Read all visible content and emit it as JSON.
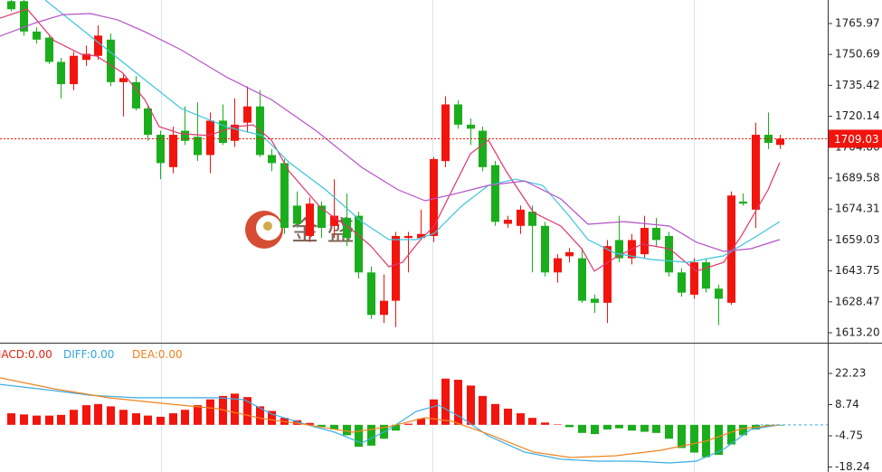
{
  "chart_data": [
    {
      "type": "candlestick",
      "up_color": "#f2150e",
      "down_color": "#1aae1c",
      "open": [
        1777,
        1777,
        1762,
        1759,
        1747,
        1736,
        1748,
        1750,
        1758,
        1737,
        1737,
        1724,
        1711,
        1695,
        1713,
        1710,
        1701,
        1718,
        1708,
        1717,
        1725,
        1701,
        1697,
        1676,
        1661,
        1676,
        1666,
        1670,
        1671,
        1643,
        1622,
        1629,
        1660,
        1660,
        1661,
        1698,
        1726,
        1716,
        1713,
        1696,
        1667,
        1666,
        1673,
        1666,
        1643,
        1651,
        1650,
        1630,
        1628,
        1659,
        1650,
        1652,
        1665,
        1661,
        1643,
        1632,
        1648,
        1635,
        1628,
        1678,
        1674,
        1711,
        1706
      ],
      "high": [
        1778,
        1778,
        1764,
        1760,
        1749,
        1752,
        1755,
        1765,
        1761,
        1741,
        1740,
        1726,
        1713,
        1715,
        1725,
        1727,
        1722,
        1726,
        1729,
        1735,
        1733,
        1704,
        1699,
        1683,
        1680,
        1678,
        1689,
        1682,
        1673,
        1646,
        1642,
        1663,
        1663,
        1674,
        1700,
        1730,
        1728,
        1719,
        1715,
        1698,
        1671,
        1676,
        1676,
        1668,
        1652,
        1655,
        1655,
        1632,
        1659,
        1671,
        1662,
        1671,
        1670,
        1663,
        1645,
        1650,
        1650,
        1637,
        1683,
        1682,
        1717,
        1722,
        1711
      ],
      "low": [
        1772,
        1760,
        1756,
        1746,
        1729,
        1733,
        1745,
        1748,
        1735,
        1720,
        1723,
        1708,
        1689,
        1692,
        1706,
        1698,
        1692,
        1706,
        1705,
        1712,
        1700,
        1693,
        1662,
        1665,
        1658,
        1660,
        1660,
        1656,
        1640,
        1620,
        1618,
        1616,
        1643,
        1659,
        1658,
        1695,
        1714,
        1706,
        1693,
        1666,
        1665,
        1662,
        1643,
        1641,
        1638,
        1648,
        1628,
        1623,
        1618,
        1648,
        1647,
        1650,
        1656,
        1641,
        1631,
        1630,
        1633,
        1617,
        1627,
        1676,
        1665,
        1704,
        1704
      ],
      "close": [
        1773,
        1762,
        1758,
        1747,
        1736,
        1750,
        1751,
        1760,
        1737,
        1739,
        1724,
        1711,
        1697,
        1711,
        1708,
        1701,
        1718,
        1707,
        1716,
        1725,
        1701,
        1697,
        1665,
        1667,
        1677,
        1665,
        1671,
        1660,
        1643,
        1622,
        1629,
        1661,
        1661,
        1662,
        1699,
        1726,
        1716,
        1714,
        1695,
        1668,
        1669,
        1674,
        1666,
        1643,
        1650,
        1653,
        1629,
        1628,
        1656,
        1650,
        1659,
        1665,
        1659,
        1643,
        1633,
        1648,
        1635,
        1630,
        1681,
        1677,
        1711,
        1707,
        1709.03
      ],
      "lines": [
        {
          "color": "#e0356c",
          "x": [
            -0.91,
            1.28,
            3.46,
            5.65,
            6.89,
            8.94,
            10.76,
            11.93,
            13.68,
            15.86,
            18.05,
            19.51,
            20.97,
            22.43,
            24.98,
            27.53,
            28.99,
            30.45,
            31.55,
            33.0,
            34.1,
            35.56,
            37.02,
            38.47,
            39.93,
            42.12,
            44.31,
            46.0,
            47.01,
            48.69,
            50.88,
            53.07,
            55.25,
            57.44,
            58.9,
            61.02,
            61.96
          ],
          "values": [
            1768.6,
            1773.1,
            1757.5,
            1750.8,
            1749.9,
            1741.8,
            1728.4,
            1715.0,
            1711.5,
            1710.6,
            1715.0,
            1715.9,
            1708.4,
            1692.7,
            1674.8,
            1663.7,
            1656.1,
            1645.8,
            1648.0,
            1659.2,
            1665.9,
            1683.8,
            1701.6,
            1708.4,
            1692.7,
            1672.6,
            1665.9,
            1654.7,
            1643.6,
            1650.3,
            1657.0,
            1654.7,
            1643.6,
            1648.0,
            1661.4,
            1683.8,
            1697.2
          ]
        },
        {
          "color": "#3ec4de",
          "x": [
            2.74,
            6.38,
            10.03,
            13.68,
            17.32,
            20.24,
            22.43,
            25.35,
            28.26,
            30.45,
            32.64,
            34.1,
            36.29,
            38.47,
            40.66,
            42.85,
            45.04,
            46.5,
            48.69,
            51.6,
            54.52,
            57.44,
            59.99,
            61.96
          ],
          "values": [
            1777.6,
            1759.7,
            1741.8,
            1724.0,
            1715.0,
            1710.6,
            1697.2,
            1683.8,
            1668.1,
            1659.2,
            1659.2,
            1662.3,
            1675.7,
            1686.0,
            1689.1,
            1686.0,
            1670.4,
            1659.2,
            1652.5,
            1649.4,
            1648.0,
            1651.2,
            1660.5,
            1668.1
          ]
        },
        {
          "color": "#b552c8",
          "x": [
            -0.91,
            2.01,
            4.19,
            6.38,
            8.57,
            10.76,
            13.68,
            17.32,
            20.97,
            24.62,
            28.26,
            31.18,
            33.37,
            35.56,
            38.47,
            41.39,
            44.31,
            46.5,
            49.42,
            53.07,
            55.25,
            57.44,
            59.62,
            61.96
          ],
          "values": [
            1759.7,
            1766.4,
            1770.4,
            1770.9,
            1767.8,
            1761.9,
            1753.0,
            1739.6,
            1728.4,
            1712.8,
            1694.9,
            1683.8,
            1678.4,
            1681.5,
            1686.0,
            1688.2,
            1679.3,
            1666.8,
            1668.1,
            1665.9,
            1657.9,
            1653.4,
            1654.7,
            1659.2
          ]
        }
      ],
      "xlim": [
        -0.91,
        65.83
      ],
      "ylim": [
        1608.73,
        1777.58
      ],
      "yticks": [
        1765.97,
        1750.69,
        1735.42,
        1720.14,
        1704.86,
        1689.58,
        1674.31,
        1659.03,
        1643.75,
        1628.47,
        {
          "value": 1613.2,
          "label": "1613.20"
        }
      ],
      "last_price": 1709.03,
      "last_price_color": "#f0140c",
      "watermark": "金 盛"
    },
    {
      "type": "macd",
      "up_color": "#f2150e",
      "down_color": "#1aae1c",
      "legend": [
        {
          "name": "MACD:",
          "value": 0,
          "value_label": "0.00",
          "color": "#e8200e"
        },
        {
          "name": "DIFF:",
          "value": 0,
          "value_label": "0.00",
          "color": "#2fa6e0"
        },
        {
          "name": "DEA:",
          "value": 0,
          "value_label": "0.00",
          "color": "#f07f1c"
        }
      ],
      "values": [
        5.0,
        4.5,
        4.0,
        4.0,
        4.3,
        6.5,
        8.5,
        9.0,
        8.0,
        6.5,
        5.0,
        4.0,
        3.5,
        5.0,
        6.5,
        8.5,
        11.0,
        12.5,
        13.5,
        12.0,
        8.0,
        6.0,
        3.0,
        2.0,
        0.8,
        -0.8,
        -2.0,
        -4.5,
        -9.5,
        -9.0,
        -6.0,
        -2.5,
        0.5,
        2.7,
        11.0,
        20.0,
        19.5,
        17.0,
        12.5,
        9.0,
        7.0,
        5.0,
        3.0,
        1.0,
        0.2,
        -1.0,
        -3.5,
        -4.0,
        -2.0,
        -1.5,
        -2.5,
        -3.0,
        -3.5,
        -6.0,
        -10.0,
        -12.0,
        -14.0,
        -13.0,
        -8.5,
        -4.5,
        -2.0,
        -0.5,
        -0.3
      ],
      "series": [
        {
          "name": "DIFF",
          "color": "#3aaee6",
          "x": [
            -0.91,
            3.46,
            6.38,
            10.03,
            13.68,
            16.59,
            18.78,
            20.97,
            23.89,
            26.07,
            28.26,
            30.45,
            32.64,
            34.46,
            36.29,
            38.47,
            41.39,
            44.31,
            47.23,
            50.15,
            53.07,
            55.25,
            57.44,
            59.62,
            61.96
          ],
          "values": [
            17.5,
            14.8,
            12.8,
            11.7,
            11.7,
            11.7,
            10.9,
            4.7,
            0,
            -3.2,
            -7.9,
            -2.0,
            5.8,
            8.5,
            3.1,
            -4.8,
            -11.8,
            -14.9,
            -15.7,
            -15.7,
            -16.5,
            -15.7,
            -10.6,
            -2.0,
            0
          ]
        },
        {
          "name": "DEA",
          "color": "#f0841e",
          "x": [
            -0.91,
            3.46,
            7.84,
            12.22,
            16.59,
            20.24,
            23.89,
            27.53,
            30.45,
            33.37,
            35.56,
            38.47,
            42.12,
            45.04,
            48.69,
            52.34,
            55.98,
            58.9,
            61.96
          ],
          "values": [
            20.3,
            15.6,
            11.7,
            9.3,
            7.0,
            2.7,
            0,
            -3.2,
            -0.8,
            3.1,
            1.5,
            -4.0,
            -11.8,
            -14.1,
            -13.4,
            -11.0,
            -7.1,
            -1.6,
            0
          ]
        }
      ],
      "xlim": [
        -0.91,
        65.83
      ],
      "ylim": [
        -20.4,
        35.14
      ],
      "yticks": [
        22.23,
        8.74,
        -4.75,
        -18.24
      ]
    }
  ]
}
